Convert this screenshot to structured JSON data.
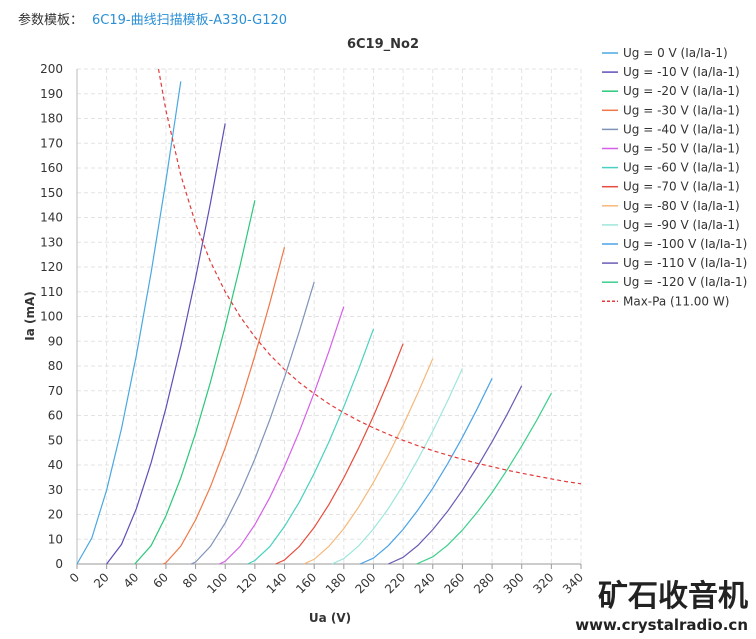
{
  "header": {
    "label": "参数模板：",
    "template": "6C19-曲线扫描模板-A330-G120"
  },
  "watermark": {
    "brand": "矿石收音机",
    "url": "www.crystalradio.cn"
  },
  "chart_data": {
    "type": "line",
    "title": "6C19_No2",
    "x_label": "Ua (V)",
    "y_label": "Ia (mA)",
    "xlim": [
      0,
      340
    ],
    "xticks": [
      0,
      20,
      40,
      60,
      80,
      100,
      120,
      140,
      160,
      180,
      200,
      220,
      240,
      260,
      280,
      300,
      320,
      340
    ],
    "ylim": [
      0,
      200
    ],
    "yticks": [
      0,
      10,
      20,
      30,
      40,
      50,
      60,
      70,
      80,
      90,
      100,
      110,
      120,
      130,
      140,
      150,
      160,
      170,
      180,
      190,
      200
    ],
    "grid": true,
    "legend": "right",
    "series": [
      {
        "name": "Ug = 0 V (Ia/Ia-1)",
        "color": "#4aa8e0",
        "x": [
          0,
          10,
          20,
          30,
          40,
          50,
          60,
          70
        ],
        "values": [
          0,
          10.5,
          29.8,
          54.7,
          84.2,
          117.7,
          154.8,
          195
        ]
      },
      {
        "name": "Ug = -10 V (Ia/Ia-1)",
        "color": "#5e4fb8",
        "x": [
          20,
          30,
          40,
          50,
          60,
          70,
          80,
          90,
          100
        ],
        "values": [
          0,
          7.9,
          22.3,
          40.9,
          62.9,
          88.0,
          115.6,
          145.7,
          178
        ]
      },
      {
        "name": "Ug = -20 V (Ia/Ia-1)",
        "color": "#2bc77a",
        "x": [
          39,
          50,
          60,
          70,
          80,
          90,
          100,
          110,
          120
        ],
        "values": [
          0,
          7.4,
          19.4,
          34.8,
          52.9,
          73.4,
          96.0,
          120.6,
          147
        ]
      },
      {
        "name": "Ug = -30 V (Ia/Ia-1)",
        "color": "#f07848",
        "x": [
          58,
          60,
          70,
          80,
          90,
          100,
          110,
          120,
          130,
          140
        ],
        "values": [
          0,
          0.5,
          7.2,
          17.8,
          31.2,
          46.9,
          64.7,
          84.2,
          105.3,
          128
        ]
      },
      {
        "name": "Ug = -40 V (Ia/Ia-1)",
        "color": "#7f93b8",
        "x": [
          77,
          80,
          90,
          100,
          110,
          120,
          130,
          140,
          150,
          160
        ],
        "values": [
          0,
          0.8,
          7.1,
          16.6,
          28.6,
          42.5,
          58.2,
          75.4,
          94.1,
          114
        ]
      },
      {
        "name": "Ug = -50 V (Ia/Ia-1)",
        "color": "#d55fe8",
        "x": [
          96,
          100,
          110,
          120,
          130,
          140,
          150,
          160,
          170,
          180
        ],
        "values": [
          0,
          1.1,
          7.1,
          15.9,
          26.8,
          39.4,
          53.6,
          69.2,
          86.0,
          104
        ]
      },
      {
        "name": "Ug = -60 V (Ia/Ia-1)",
        "color": "#48d1c0",
        "x": [
          115,
          120,
          130,
          140,
          150,
          160,
          170,
          180,
          190,
          200
        ],
        "values": [
          0,
          1.4,
          7.0,
          15.2,
          25.1,
          36.6,
          49.4,
          63.5,
          78.7,
          95
        ]
      },
      {
        "name": "Ug = -70 V (Ia/Ia-1)",
        "color": "#e74c3c",
        "x": [
          134,
          140,
          150,
          160,
          170,
          180,
          190,
          200,
          210,
          220
        ],
        "values": [
          0,
          1.6,
          7.1,
          14.8,
          24.1,
          34.8,
          46.8,
          59.8,
          73.9,
          89
        ]
      },
      {
        "name": "Ug = -80 V (Ia/Ia-1)",
        "color": "#f5b87a",
        "x": [
          153,
          160,
          170,
          180,
          190,
          200,
          210,
          220,
          230,
          240
        ],
        "values": [
          0,
          1.9,
          7.2,
          14.3,
          23.0,
          33.0,
          44.0,
          56.1,
          69.1,
          83
        ]
      },
      {
        "name": "Ug = -90 V (Ia/Ia-1)",
        "color": "#9ee6dd",
        "x": [
          172,
          180,
          190,
          200,
          210,
          220,
          230,
          240,
          250,
          260
        ],
        "values": [
          0,
          2.2,
          7.3,
          14.2,
          22.4,
          31.8,
          42.3,
          53.7,
          65.9,
          79
        ]
      },
      {
        "name": "Ug = -100 V (Ia/Ia-1)",
        "color": "#4aa3e8",
        "x": [
          191,
          200,
          210,
          220,
          230,
          240,
          250,
          260,
          270,
          280
        ],
        "values": [
          0,
          2.4,
          7.4,
          14.0,
          21.8,
          30.6,
          40.5,
          51.2,
          62.7,
          75
        ]
      },
      {
        "name": "Ug = -110 V (Ia/Ia-1)",
        "color": "#6b5bb5",
        "x": [
          210,
          220,
          230,
          240,
          250,
          260,
          270,
          280,
          290,
          300
        ],
        "values": [
          0,
          2.7,
          7.5,
          13.9,
          21.3,
          29.8,
          39.2,
          49.4,
          60.3,
          72
        ]
      },
      {
        "name": "Ug = -120 V (Ia/Ia-1)",
        "color": "#3ad08a",
        "x": [
          229,
          240,
          250,
          260,
          270,
          280,
          290,
          300,
          310,
          320
        ],
        "values": [
          0,
          2.9,
          7.6,
          13.7,
          20.9,
          28.9,
          37.9,
          47.6,
          57.9,
          69
        ]
      },
      {
        "name": "Max-Pa (11.00 W)",
        "color": "#e33b3b",
        "dashed": true,
        "x": [
          55,
          60,
          70,
          80,
          90,
          100,
          110,
          120,
          130,
          140,
          150,
          160,
          170,
          180,
          190,
          200,
          210,
          220,
          230,
          240,
          250,
          260,
          270,
          280,
          290,
          300,
          310,
          320,
          330,
          340
        ],
        "values": [
          200,
          183.3,
          157.1,
          137.5,
          122.2,
          110,
          100,
          91.7,
          84.6,
          78.6,
          73.3,
          68.8,
          64.7,
          61.1,
          57.9,
          55,
          52.4,
          50,
          47.8,
          45.8,
          44,
          42.3,
          40.7,
          39.3,
          37.9,
          36.7,
          35.5,
          34.4,
          33.3,
          32.4
        ]
      }
    ]
  }
}
